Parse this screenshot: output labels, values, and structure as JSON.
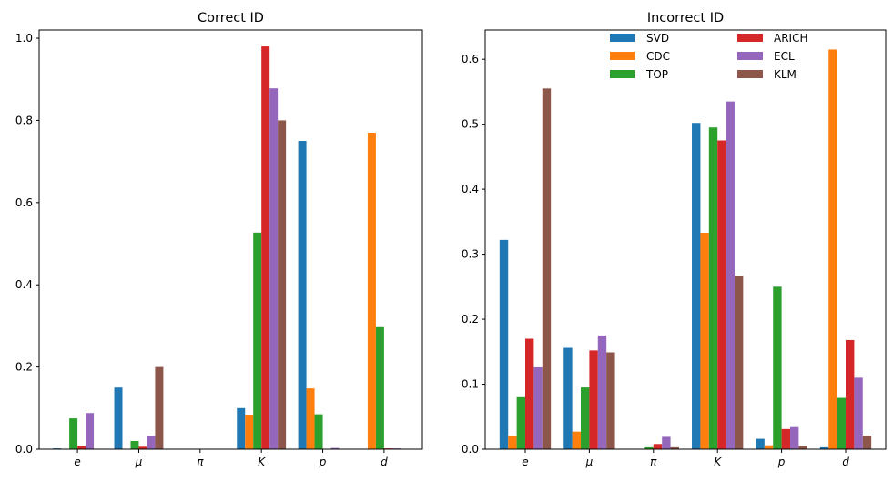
{
  "chart_data": [
    {
      "type": "bar",
      "title": "Correct ID",
      "categories": [
        "e",
        "μ",
        "π",
        "K",
        "p",
        "d"
      ],
      "ylim": [
        0,
        1.02
      ],
      "yticks": [
        0.0,
        0.2,
        0.4,
        0.6,
        0.8,
        1.0
      ],
      "ytick_labels": [
        "0.0",
        "0.2",
        "0.4",
        "0.6",
        "0.8",
        "1.0"
      ],
      "legend": false,
      "series": [
        {
          "name": "SVD",
          "color": "#1f77b4",
          "values": [
            0.002,
            0.15,
            0.0,
            0.1,
            0.75,
            0.0
          ]
        },
        {
          "name": "CDC",
          "color": "#ff7f0e",
          "values": [
            0.0,
            0.0,
            0.0,
            0.084,
            0.148,
            0.77
          ]
        },
        {
          "name": "TOP",
          "color": "#2ca02c",
          "values": [
            0.075,
            0.02,
            0.0,
            0.527,
            0.085,
            0.297
          ]
        },
        {
          "name": "ARICH",
          "color": "#d62728",
          "values": [
            0.008,
            0.006,
            0.0,
            0.98,
            0.0,
            0.002
          ]
        },
        {
          "name": "ECL",
          "color": "#9467bd",
          "values": [
            0.088,
            0.032,
            0.0,
            0.878,
            0.003,
            0.002
          ]
        },
        {
          "name": "KLM",
          "color": "#8c564b",
          "values": [
            0.0,
            0.2,
            0.0,
            0.8,
            0.0,
            0.0
          ]
        }
      ]
    },
    {
      "type": "bar",
      "title": "Incorrect ID",
      "categories": [
        "e",
        "μ",
        "π",
        "K",
        "p",
        "d"
      ],
      "ylim": [
        0,
        0.645
      ],
      "yticks": [
        0.0,
        0.1,
        0.2,
        0.3,
        0.4,
        0.5,
        0.6
      ],
      "ytick_labels": [
        "0.0",
        "0.1",
        "0.2",
        "0.3",
        "0.4",
        "0.5",
        "0.6"
      ],
      "legend": true,
      "legend_position": "top-center",
      "series": [
        {
          "name": "SVD",
          "color": "#1f77b4",
          "values": [
            0.322,
            0.156,
            0.0,
            0.502,
            0.016,
            0.003
          ]
        },
        {
          "name": "CDC",
          "color": "#ff7f0e",
          "values": [
            0.02,
            0.027,
            0.0,
            0.333,
            0.006,
            0.615
          ]
        },
        {
          "name": "TOP",
          "color": "#2ca02c",
          "values": [
            0.08,
            0.095,
            0.003,
            0.495,
            0.25,
            0.079
          ]
        },
        {
          "name": "ARICH",
          "color": "#d62728",
          "values": [
            0.17,
            0.152,
            0.008,
            0.475,
            0.031,
            0.168
          ]
        },
        {
          "name": "ECL",
          "color": "#9467bd",
          "values": [
            0.126,
            0.175,
            0.019,
            0.535,
            0.034,
            0.11
          ]
        },
        {
          "name": "KLM",
          "color": "#8c564b",
          "values": [
            0.555,
            0.149,
            0.003,
            0.267,
            0.005,
            0.021
          ]
        }
      ]
    }
  ]
}
